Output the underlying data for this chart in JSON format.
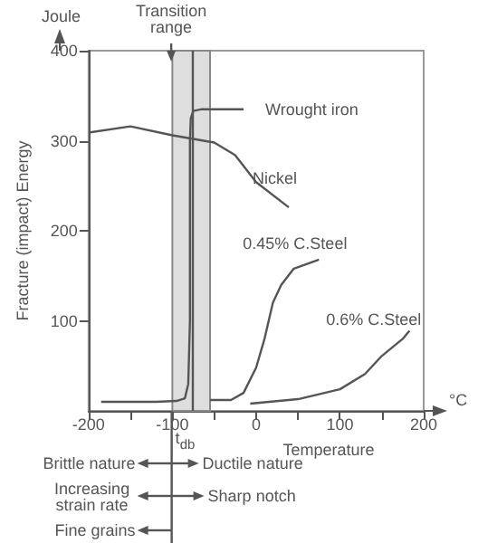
{
  "chart_data": {
    "type": "line",
    "ylabel": "Fracture (impact) Energy",
    "xlabel": "Temperature",
    "xlim": [
      -200,
      200
    ],
    "ylim": [
      0,
      400
    ],
    "xticks": [
      -200,
      {
        "value": -150,
        "label": null
      },
      -100,
      {
        "value": -50,
        "label": null
      },
      0,
      {
        "value": 50,
        "label": null
      },
      100,
      {
        "value": 150,
        "label": null
      },
      200
    ],
    "yticks": [
      100,
      200,
      300,
      400
    ],
    "grid": false,
    "legend": false,
    "marker": "none",
    "line_style": "solid",
    "series": [
      {
        "name": "Wrought iron",
        "color": "#555555",
        "x": [
          -185,
          -120,
          -95,
          -85,
          -81,
          -79,
          -79,
          -78,
          -75,
          -65,
          -15
        ],
        "values": [
          10,
          10,
          11,
          14,
          30,
          100,
          300,
          325,
          333,
          335,
          335
        ]
      },
      {
        "name": "Nickel",
        "color": "#555555",
        "x": [
          -200,
          -150,
          -100,
          -50,
          -25,
          0,
          39
        ],
        "values": [
          309,
          316,
          306,
          298,
          284,
          254,
          226
        ]
      },
      {
        "name": "0.45% C.Steel",
        "color": "#555555",
        "x": [
          -55,
          -30,
          -15,
          0,
          10,
          20,
          30,
          45,
          75
        ],
        "values": [
          12,
          12,
          20,
          48,
          80,
          120,
          140,
          158,
          168
        ]
      },
      {
        "name": "0.6% C.Steel",
        "color": "#555555",
        "x": [
          -7,
          50,
          100,
          130,
          150,
          175,
          183
        ],
        "values": [
          8,
          13,
          24,
          41,
          61,
          80,
          89
        ]
      }
    ],
    "bands": [
      {
        "axis": "x",
        "from": -100,
        "to": -55,
        "label": "Transition range",
        "color": "#dedede"
      }
    ],
    "ref_lines": [
      {
        "axis": "x",
        "value": -77,
        "label": "t$_{db}$"
      }
    ],
    "annotations": [
      "Joule",
      "°C",
      "Brittle nature",
      "Ductile nature",
      "Increasing strain rate",
      "Sharp notch",
      "Fine grains"
    ]
  }
}
